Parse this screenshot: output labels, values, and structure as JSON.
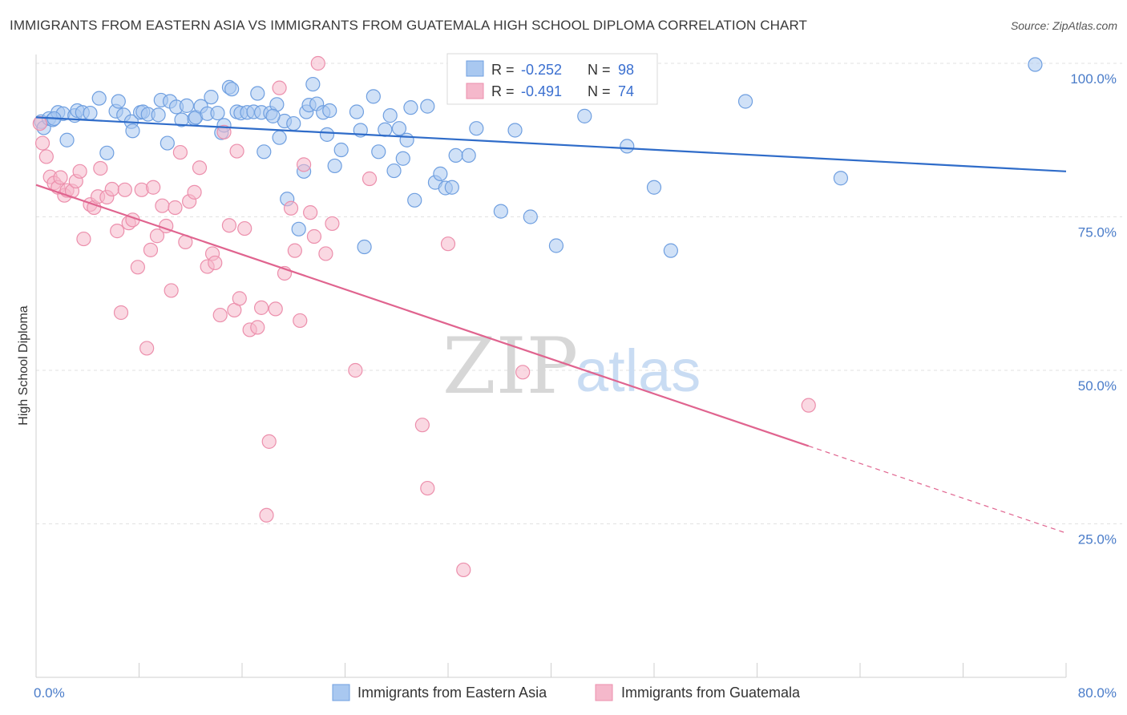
{
  "title": "IMMIGRANTS FROM EASTERN ASIA VS IMMIGRANTS FROM GUATEMALA HIGH SCHOOL DIPLOMA CORRELATION CHART",
  "source": "Source: ZipAtlas.com",
  "watermark": {
    "zip": "ZIP",
    "atlas": "atlas"
  },
  "colors": {
    "blue_fill": "#a9c8f0",
    "blue_stroke": "#6f9fe0",
    "blue_line": "#2f6cc9",
    "pink_fill": "#f5b8cb",
    "pink_stroke": "#ec8fac",
    "pink_line": "#e0648f",
    "axis_label": "#4a7cc9",
    "grid": "#e2e2e2"
  },
  "legend": {
    "r_label": "R =",
    "n_label": "N =",
    "series": [
      {
        "r": "-0.252",
        "n": "98"
      },
      {
        "r": "-0.491",
        "n": "74"
      }
    ]
  },
  "chart_data": {
    "type": "scatter",
    "ylabel": "High School Diploma",
    "xlabel": "",
    "xlim": [
      0,
      80
    ],
    "ylim": [
      0,
      102
    ],
    "x_ticks": [
      {
        "value": 0,
        "label": "0.0%"
      },
      {
        "value": 80,
        "label": "80.0%"
      }
    ],
    "y_ticks": [
      {
        "value": 100,
        "label": "100.0%"
      },
      {
        "value": 75,
        "label": "75.0%"
      },
      {
        "value": 50,
        "label": "50.0%"
      },
      {
        "value": 25,
        "label": "25.0%"
      }
    ],
    "grid": true,
    "legend_position": "top-center",
    "series": [
      {
        "name": "Immigrants from Eastern Asia",
        "color": "#a9c8f0",
        "trend": {
          "x": [
            0,
            80
          ],
          "y": [
            91.2,
            82.4
          ],
          "dashed_from": null
        },
        "points": [
          [
            0.4,
            90.5
          ],
          [
            0.6,
            89.5
          ],
          [
            1.0,
            91.0
          ],
          [
            1.3,
            90.8
          ],
          [
            1.7,
            92.0
          ],
          [
            2.1,
            91.8
          ],
          [
            2.4,
            87.5
          ],
          [
            3.0,
            91.5
          ],
          [
            3.2,
            92.3
          ],
          [
            3.6,
            92.0
          ],
          [
            4.2,
            91.9
          ],
          [
            4.9,
            94.3
          ],
          [
            5.5,
            85.4
          ],
          [
            6.2,
            92.2
          ],
          [
            6.4,
            93.8
          ],
          [
            6.8,
            91.6
          ],
          [
            7.4,
            90.5
          ],
          [
            7.5,
            89.0
          ],
          [
            8.1,
            92.0
          ],
          [
            8.3,
            92.1
          ],
          [
            8.7,
            91.7
          ],
          [
            9.5,
            91.6
          ],
          [
            9.7,
            94.0
          ],
          [
            10.2,
            87.0
          ],
          [
            10.4,
            93.8
          ],
          [
            10.9,
            92.9
          ],
          [
            11.3,
            90.8
          ],
          [
            11.7,
            93.1
          ],
          [
            12.3,
            91.0
          ],
          [
            12.4,
            91.2
          ],
          [
            12.8,
            93.0
          ],
          [
            13.3,
            91.8
          ],
          [
            13.6,
            94.5
          ],
          [
            14.1,
            91.9
          ],
          [
            14.4,
            88.7
          ],
          [
            14.6,
            89.9
          ],
          [
            15.0,
            96.1
          ],
          [
            15.2,
            95.8
          ],
          [
            15.6,
            92.1
          ],
          [
            15.9,
            91.9
          ],
          [
            16.4,
            92.0
          ],
          [
            16.9,
            92.1
          ],
          [
            17.2,
            95.1
          ],
          [
            17.5,
            92.0
          ],
          [
            17.7,
            85.6
          ],
          [
            18.2,
            91.9
          ],
          [
            18.7,
            93.3
          ],
          [
            18.9,
            87.9
          ],
          [
            19.3,
            90.6
          ],
          [
            19.5,
            77.9
          ],
          [
            20.0,
            90.2
          ],
          [
            20.4,
            73.0
          ],
          [
            20.8,
            82.4
          ],
          [
            21.0,
            92.1
          ],
          [
            21.2,
            93.2
          ],
          [
            21.5,
            96.6
          ],
          [
            21.8,
            93.4
          ],
          [
            22.3,
            92.0
          ],
          [
            22.6,
            88.4
          ],
          [
            22.8,
            92.3
          ],
          [
            23.2,
            83.3
          ],
          [
            23.7,
            85.9
          ],
          [
            24.9,
            92.1
          ],
          [
            25.2,
            89.1
          ],
          [
            25.5,
            70.1
          ],
          [
            26.2,
            94.6
          ],
          [
            26.6,
            85.6
          ],
          [
            27.1,
            89.2
          ],
          [
            27.5,
            91.5
          ],
          [
            27.8,
            82.5
          ],
          [
            28.2,
            89.4
          ],
          [
            28.5,
            84.5
          ],
          [
            28.8,
            87.5
          ],
          [
            29.1,
            92.8
          ],
          [
            29.4,
            77.7
          ],
          [
            30.4,
            93.0
          ],
          [
            31.0,
            80.6
          ],
          [
            31.4,
            82.0
          ],
          [
            31.8,
            79.7
          ],
          [
            32.3,
            79.8
          ],
          [
            32.6,
            85.0
          ],
          [
            33.6,
            85.0
          ],
          [
            34.2,
            89.4
          ],
          [
            36.1,
            75.9
          ],
          [
            37.2,
            89.1
          ],
          [
            38.4,
            75.0
          ],
          [
            38.5,
            99.8
          ],
          [
            40.4,
            70.3
          ],
          [
            42.6,
            91.4
          ],
          [
            43.5,
            99.8
          ],
          [
            45.9,
            86.5
          ],
          [
            48.0,
            79.8
          ],
          [
            49.3,
            69.5
          ],
          [
            55.1,
            93.8
          ],
          [
            62.5,
            81.3
          ],
          [
            77.6,
            99.8
          ],
          [
            1.4,
            91.0
          ],
          [
            18.4,
            91.4
          ]
        ]
      },
      {
        "name": "Immigrants from Guatemala",
        "color": "#f5b8cb",
        "trend": {
          "x": [
            0,
            80
          ],
          "y": [
            80.2,
            23.5
          ],
          "dashed_from": 60
        },
        "points": [
          [
            0.3,
            90.2
          ],
          [
            0.5,
            87.0
          ],
          [
            0.8,
            84.8
          ],
          [
            1.1,
            81.5
          ],
          [
            1.4,
            80.5
          ],
          [
            1.7,
            79.8
          ],
          [
            1.9,
            81.4
          ],
          [
            2.2,
            78.5
          ],
          [
            2.4,
            79.3
          ],
          [
            2.8,
            79.2
          ],
          [
            3.1,
            80.8
          ],
          [
            3.4,
            82.4
          ],
          [
            3.7,
            71.4
          ],
          [
            4.2,
            77.0
          ],
          [
            4.5,
            76.5
          ],
          [
            4.8,
            78.3
          ],
          [
            5.0,
            82.9
          ],
          [
            5.5,
            78.2
          ],
          [
            5.9,
            79.5
          ],
          [
            6.3,
            72.7
          ],
          [
            6.6,
            59.4
          ],
          [
            6.9,
            79.4
          ],
          [
            7.2,
            74.0
          ],
          [
            7.5,
            74.5
          ],
          [
            7.9,
            66.8
          ],
          [
            8.2,
            79.4
          ],
          [
            8.6,
            53.6
          ],
          [
            8.9,
            69.6
          ],
          [
            9.1,
            79.8
          ],
          [
            9.4,
            71.9
          ],
          [
            9.8,
            76.8
          ],
          [
            10.1,
            73.5
          ],
          [
            10.5,
            63.0
          ],
          [
            10.8,
            76.5
          ],
          [
            11.2,
            85.5
          ],
          [
            11.6,
            70.9
          ],
          [
            11.9,
            77.5
          ],
          [
            12.3,
            79.0
          ],
          [
            12.7,
            83.0
          ],
          [
            13.3,
            66.9
          ],
          [
            13.7,
            69.0
          ],
          [
            13.9,
            67.5
          ],
          [
            14.3,
            59.0
          ],
          [
            14.6,
            88.8
          ],
          [
            15.0,
            73.6
          ],
          [
            15.4,
            59.8
          ],
          [
            15.6,
            85.7
          ],
          [
            15.8,
            61.7
          ],
          [
            16.2,
            73.1
          ],
          [
            16.6,
            56.6
          ],
          [
            17.2,
            57.0
          ],
          [
            17.5,
            60.2
          ],
          [
            17.9,
            26.4
          ],
          [
            18.1,
            38.4
          ],
          [
            18.6,
            60.0
          ],
          [
            18.9,
            96.0
          ],
          [
            19.3,
            65.8
          ],
          [
            19.8,
            76.4
          ],
          [
            20.1,
            69.5
          ],
          [
            20.5,
            58.1
          ],
          [
            20.8,
            83.5
          ],
          [
            21.3,
            75.7
          ],
          [
            21.6,
            71.8
          ],
          [
            21.9,
            100.0
          ],
          [
            22.5,
            69.0
          ],
          [
            23.0,
            73.9
          ],
          [
            24.8,
            50.0
          ],
          [
            25.9,
            81.2
          ],
          [
            30.0,
            41.1
          ],
          [
            30.4,
            30.8
          ],
          [
            32.0,
            70.6
          ],
          [
            33.2,
            17.5
          ],
          [
            37.8,
            49.7
          ],
          [
            60.0,
            44.3
          ]
        ]
      }
    ]
  }
}
